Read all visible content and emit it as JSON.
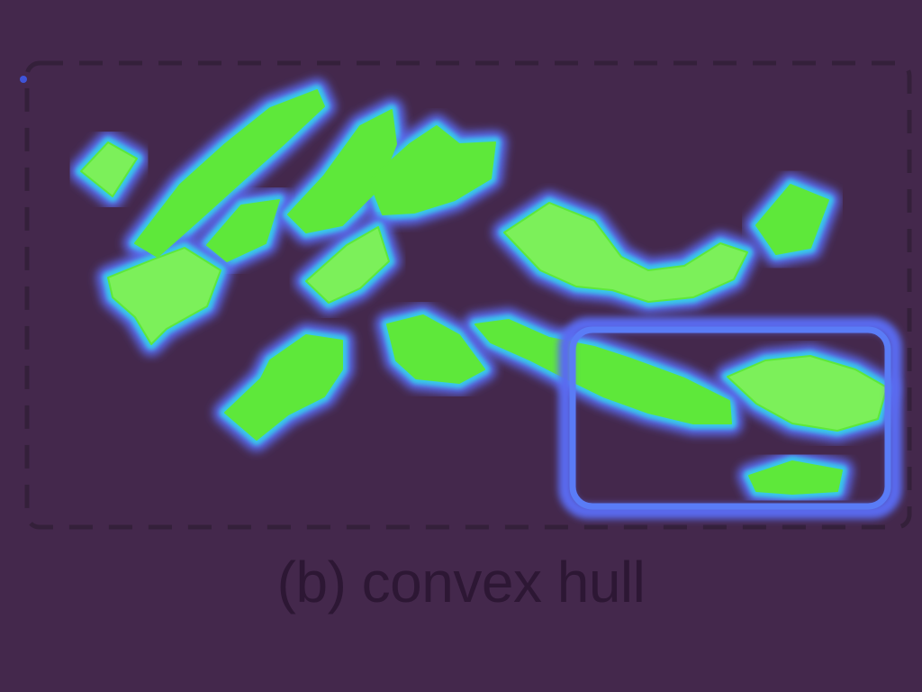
{
  "caption": "(b) convex hull",
  "colors": {
    "background": "#44284c",
    "frame_stroke": "#34203a",
    "caption_text": "#2d1734",
    "blob_fill": "#5ee83a",
    "blob_fill_light": "#7cf05a",
    "glow_outer": "#5a6bf0",
    "glow_inner": "#38c7e8",
    "hull_stroke": "#5a7cf6",
    "hull_inner": "#3f54d8"
  },
  "legend": null
}
